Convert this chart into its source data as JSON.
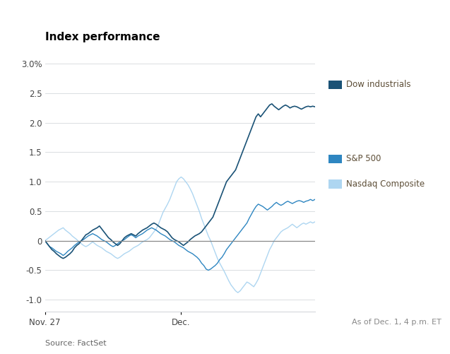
{
  "title": "Index performance",
  "source_text": "Source: FactSet",
  "as_of_text": "As of Dec. 1, 4 p.m. ET",
  "yticks": [
    -1.0,
    -0.5,
    0.0,
    0.5,
    1.0,
    1.5,
    2.0,
    2.5,
    3.0
  ],
  "ylim": [
    -1.2,
    3.3
  ],
  "xlim": [
    0,
    119
  ],
  "xtick_positions": [
    0,
    60
  ],
  "xtick_labels": [
    "Nov. 27",
    "Dec."
  ],
  "colors": {
    "dow": "#1a5276",
    "sp500": "#2e86c1",
    "nasdaq": "#aed6f1"
  },
  "legend_label_color": "#7d6608",
  "legend_labels": [
    "Dow industrials",
    "S&P 500",
    "Nasdaq Composite"
  ],
  "background_color": "#ffffff",
  "grid_color": "#d5d8dc",
  "zeroline_color": "#888888",
  "dow": [
    0.0,
    -0.05,
    -0.1,
    -0.15,
    -0.18,
    -0.22,
    -0.25,
    -0.28,
    -0.3,
    -0.28,
    -0.25,
    -0.22,
    -0.18,
    -0.12,
    -0.08,
    -0.05,
    0.0,
    0.05,
    0.1,
    0.12,
    0.15,
    0.18,
    0.2,
    0.22,
    0.25,
    0.2,
    0.15,
    0.1,
    0.05,
    0.02,
    -0.02,
    -0.05,
    -0.08,
    -0.05,
    0.0,
    0.05,
    0.08,
    0.1,
    0.12,
    0.1,
    0.08,
    0.12,
    0.15,
    0.18,
    0.2,
    0.22,
    0.25,
    0.28,
    0.3,
    0.28,
    0.25,
    0.22,
    0.2,
    0.18,
    0.15,
    0.1,
    0.05,
    0.02,
    0.0,
    -0.02,
    -0.05,
    -0.08,
    -0.05,
    -0.02,
    0.02,
    0.05,
    0.08,
    0.1,
    0.12,
    0.15,
    0.2,
    0.25,
    0.3,
    0.35,
    0.4,
    0.5,
    0.6,
    0.7,
    0.8,
    0.9,
    1.0,
    1.05,
    1.1,
    1.15,
    1.2,
    1.3,
    1.4,
    1.5,
    1.6,
    1.7,
    1.8,
    1.9,
    2.0,
    2.1,
    2.15,
    2.1,
    2.15,
    2.2,
    2.25,
    2.3,
    2.32,
    2.28,
    2.25,
    2.22,
    2.25,
    2.28,
    2.3,
    2.28,
    2.25,
    2.27,
    2.28,
    2.27,
    2.25,
    2.23,
    2.25,
    2.27,
    2.28,
    2.27,
    2.28,
    2.27
  ],
  "sp500": [
    0.0,
    -0.05,
    -0.1,
    -0.12,
    -0.15,
    -0.18,
    -0.2,
    -0.22,
    -0.25,
    -0.22,
    -0.18,
    -0.15,
    -0.12,
    -0.08,
    -0.05,
    -0.02,
    0.0,
    0.02,
    0.05,
    0.08,
    0.1,
    0.12,
    0.1,
    0.08,
    0.05,
    0.02,
    0.0,
    -0.02,
    -0.05,
    -0.08,
    -0.1,
    -0.08,
    -0.05,
    -0.02,
    0.0,
    0.02,
    0.05,
    0.08,
    0.1,
    0.08,
    0.05,
    0.08,
    0.1,
    0.12,
    0.15,
    0.18,
    0.2,
    0.22,
    0.2,
    0.18,
    0.15,
    0.12,
    0.1,
    0.08,
    0.05,
    0.02,
    0.0,
    -0.02,
    -0.05,
    -0.08,
    -0.1,
    -0.12,
    -0.15,
    -0.18,
    -0.2,
    -0.22,
    -0.25,
    -0.28,
    -0.32,
    -0.38,
    -0.42,
    -0.48,
    -0.5,
    -0.48,
    -0.45,
    -0.42,
    -0.38,
    -0.32,
    -0.28,
    -0.22,
    -0.15,
    -0.1,
    -0.05,
    0.0,
    0.05,
    0.1,
    0.15,
    0.2,
    0.25,
    0.3,
    0.38,
    0.45,
    0.52,
    0.58,
    0.62,
    0.6,
    0.58,
    0.55,
    0.52,
    0.55,
    0.58,
    0.62,
    0.65,
    0.62,
    0.6,
    0.62,
    0.65,
    0.67,
    0.65,
    0.63,
    0.65,
    0.67,
    0.68,
    0.67,
    0.65,
    0.67,
    0.68,
    0.7,
    0.68,
    0.7
  ],
  "nasdaq": [
    0.0,
    0.03,
    0.06,
    0.09,
    0.12,
    0.15,
    0.18,
    0.2,
    0.22,
    0.18,
    0.15,
    0.12,
    0.08,
    0.05,
    0.02,
    -0.02,
    -0.05,
    -0.08,
    -0.1,
    -0.08,
    -0.05,
    -0.02,
    -0.05,
    -0.08,
    -0.1,
    -0.12,
    -0.15,
    -0.18,
    -0.2,
    -0.22,
    -0.25,
    -0.28,
    -0.3,
    -0.28,
    -0.25,
    -0.22,
    -0.2,
    -0.18,
    -0.15,
    -0.12,
    -0.1,
    -0.08,
    -0.05,
    -0.02,
    0.0,
    0.02,
    0.05,
    0.1,
    0.15,
    0.2,
    0.28,
    0.38,
    0.48,
    0.55,
    0.62,
    0.7,
    0.8,
    0.9,
    1.0,
    1.05,
    1.08,
    1.05,
    1.0,
    0.95,
    0.88,
    0.8,
    0.7,
    0.6,
    0.5,
    0.38,
    0.28,
    0.18,
    0.08,
    0.0,
    -0.1,
    -0.2,
    -0.3,
    -0.38,
    -0.45,
    -0.52,
    -0.6,
    -0.68,
    -0.75,
    -0.8,
    -0.85,
    -0.88,
    -0.85,
    -0.8,
    -0.75,
    -0.7,
    -0.72,
    -0.75,
    -0.78,
    -0.72,
    -0.65,
    -0.55,
    -0.45,
    -0.35,
    -0.25,
    -0.15,
    -0.08,
    0.0,
    0.05,
    0.1,
    0.15,
    0.18,
    0.2,
    0.22,
    0.25,
    0.28,
    0.25,
    0.22,
    0.25,
    0.28,
    0.3,
    0.28,
    0.3,
    0.32,
    0.3,
    0.32
  ]
}
